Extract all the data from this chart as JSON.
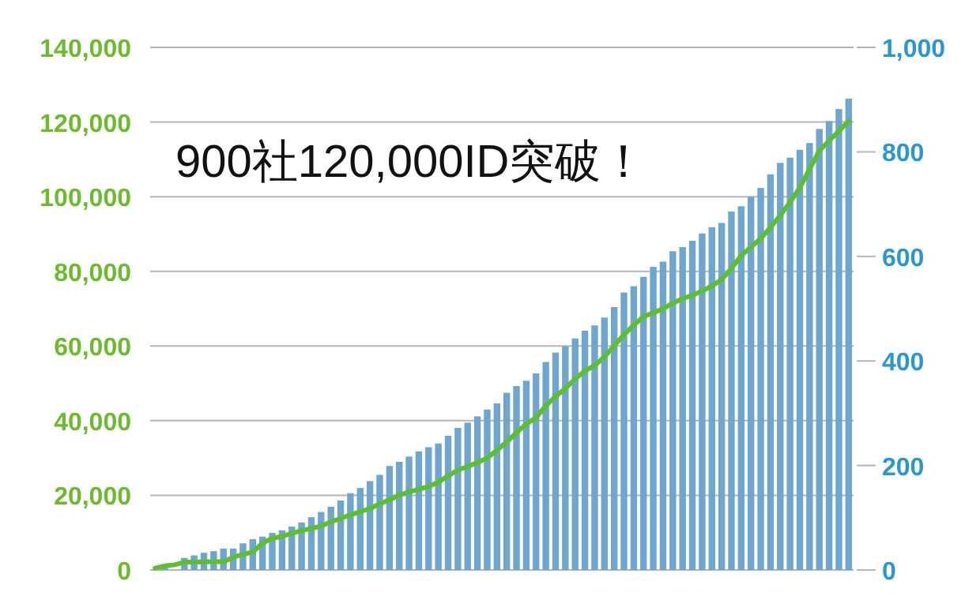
{
  "chart_data": {
    "type": "bar",
    "annotations": [
      "900社120,000ID突破！"
    ],
    "categories": [
      null,
      null,
      null,
      null,
      null,
      null,
      null,
      null,
      null,
      null,
      null,
      null,
      null,
      null,
      null,
      null,
      null,
      null,
      null,
      null,
      null,
      null,
      null,
      null,
      null,
      null,
      null,
      null,
      null,
      null,
      null,
      null,
      null,
      null,
      null,
      null,
      null,
      null,
      null,
      null,
      null,
      null,
      null,
      null,
      null,
      null,
      null,
      null,
      null,
      null,
      null,
      null,
      null,
      null,
      null,
      null,
      null,
      null,
      null,
      null,
      null,
      null,
      null,
      null,
      null,
      null,
      null,
      null,
      null,
      null,
      null,
      null
    ],
    "series": [
      {
        "axis": "y2",
        "color": "#6fa6cf",
        "values": [
          null,
          6,
          null,
          23,
          28,
          33,
          36,
          41,
          41,
          51,
          59,
          64,
          71,
          76,
          83,
          91,
          101,
          111,
          121,
          133,
          147,
          157,
          170,
          182,
          199,
          207,
          217,
          227,
          235,
          242,
          257,
          272,
          282,
          294,
          307,
          319,
          339,
          352,
          362,
          376,
          398,
          416,
          428,
          443,
          458,
          468,
          483,
          503,
          531,
          543,
          561,
          580,
          590,
          610,
          618,
          630,
          644,
          656,
          664,
          686,
          696,
          714,
          731,
          757,
          779,
          789,
          804,
          817,
          844,
          859,
          882,
          902
        ]
      },
      {
        "type": "line",
        "axis": "y",
        "color": "#5cbf2e",
        "values": [
          500,
          1100,
          1400,
          2100,
          2100,
          2200,
          2200,
          2200,
          3400,
          4200,
          4800,
          7200,
          8500,
          9000,
          9800,
          10600,
          11100,
          11800,
          12900,
          13800,
          14800,
          15600,
          16500,
          17700,
          18800,
          20100,
          20900,
          21600,
          22400,
          23500,
          25200,
          26800,
          27700,
          28800,
          30000,
          32100,
          34300,
          36800,
          39100,
          40800,
          44000,
          46500,
          48600,
          51200,
          53300,
          54800,
          57100,
          60100,
          63000,
          65600,
          67900,
          68900,
          70000,
          71500,
          72700,
          73600,
          74700,
          76100,
          77800,
          80800,
          84200,
          86500,
          88800,
          91800,
          95000,
          98500,
          102400,
          107400,
          112300,
          115000,
          117600,
          120200
        ]
      }
    ],
    "ylim": [
      0,
      140000
    ],
    "yticks": [
      {
        "value": 0,
        "label": "0"
      },
      {
        "value": 20000,
        "label": "20,000"
      },
      {
        "value": 40000,
        "label": "40,000"
      },
      {
        "value": 60000,
        "label": "60,000"
      },
      {
        "value": 80000,
        "label": "80,000"
      },
      {
        "value": 100000,
        "label": "100,000"
      },
      {
        "value": 120000,
        "label": "120,000"
      },
      {
        "value": 140000,
        "label": "140,000"
      }
    ],
    "y2lim": [
      0,
      1000
    ],
    "y2ticks": [
      0,
      200,
      400,
      600,
      800,
      {
        "value": 1000,
        "label": "1,000"
      }
    ],
    "grid": "y",
    "tick_labels": "y"
  }
}
